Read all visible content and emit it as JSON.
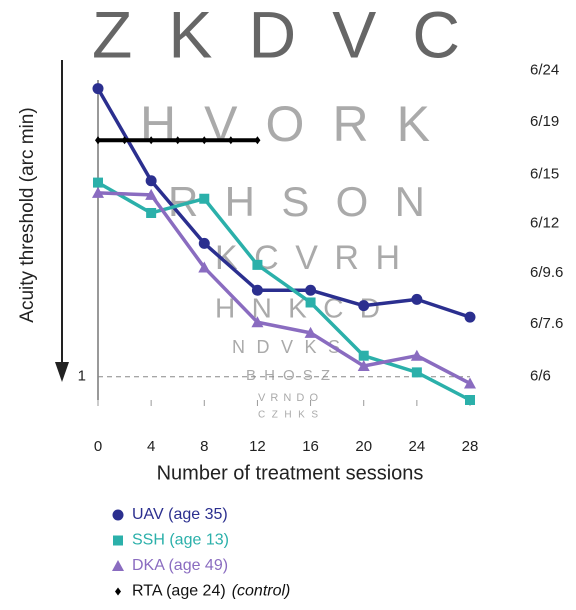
{
  "chart_data": {
    "type": "line",
    "y_label": "Acuity threshold (arc min)",
    "x_label": "Number of treatment sessions",
    "log_y": true,
    "grid_dashed": true,
    "xlim": [
      0,
      28
    ],
    "xticks": [
      0,
      4,
      8,
      12,
      16,
      20,
      24,
      28
    ],
    "ylim": [
      0.9,
      4.2
    ],
    "yticks": [
      1
    ],
    "y2lim": [
      0.9,
      4.2
    ],
    "y2ticks": [
      {
        "value": 4,
        "label": "6/24"
      },
      {
        "value": 3.17,
        "label": "6/19"
      },
      {
        "value": 2.5,
        "label": "6/15"
      },
      {
        "value": 2,
        "label": "6/12"
      },
      {
        "value": 1.6,
        "label": "6/9.6"
      },
      {
        "value": 1.27,
        "label": "6/7.6"
      },
      {
        "value": 1,
        "label": "6/6"
      }
    ],
    "background_rows": [
      "Z K D V C",
      "H V O R K",
      "R H S O N",
      "K C V R H",
      "H N K C D",
      "N D V K S",
      "B H O S Z",
      "V R N D O",
      "C Z H K S"
    ],
    "series": [
      {
        "name": "UAV (age 35)",
        "color": "#2b2f8f",
        "marker": "circle",
        "x": [
          0,
          4,
          8,
          12,
          16,
          20,
          24,
          28
        ],
        "values": [
          3.69,
          2.43,
          1.83,
          1.48,
          1.48,
          1.38,
          1.42,
          1.31
        ]
      },
      {
        "name": "SSH (age 13)",
        "color": "#2bb0aa",
        "marker": "square",
        "x": [
          0,
          4,
          8,
          12,
          16,
          20,
          24,
          28
        ],
        "values": [
          2.41,
          2.1,
          2.24,
          1.66,
          1.4,
          1.1,
          1.02,
          0.9
        ]
      },
      {
        "name": "DKA (age 49)",
        "color": "#8a6cc0",
        "marker": "triangle",
        "x": [
          0,
          4,
          8,
          12,
          16,
          20,
          24,
          28
        ],
        "values": [
          2.3,
          2.28,
          1.64,
          1.28,
          1.22,
          1.05,
          1.1,
          0.97
        ]
      },
      {
        "name": "RTA (age 24)",
        "note": "(control)",
        "color": "#000000",
        "marker": "diamond",
        "x": [
          0,
          2,
          4,
          6,
          8,
          10,
          12
        ],
        "values": [
          2.92,
          2.92,
          2.92,
          2.92,
          2.92,
          2.92,
          2.92
        ]
      }
    ]
  }
}
